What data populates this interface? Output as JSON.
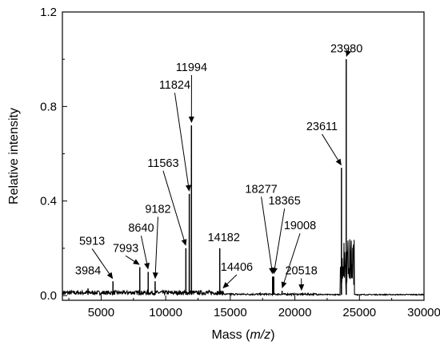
{
  "chart_data": {
    "type": "line",
    "xlabel_main": "Mass (",
    "xlabel_italic": "m/z",
    "xlabel_end": ")",
    "ylabel": "Relative intensity",
    "xlim": [
      2000,
      30000
    ],
    "ylim": [
      -0.02,
      1.2
    ],
    "x_ticks": [
      5000,
      10000,
      15000,
      20000,
      25000,
      30000
    ],
    "x_tick_labels": [
      "5000",
      "10000",
      "15000",
      "20000",
      "25000",
      "30000"
    ],
    "y_ticks": [
      0.0,
      0.4,
      0.8,
      1.2
    ],
    "y_tick_labels": [
      "0.0",
      "0.4",
      "0.8",
      "1.2"
    ],
    "line_color": "#000000",
    "spectrum_peaks": [
      {
        "mass": 3984,
        "intensity": 0.03
      },
      {
        "mass": 5913,
        "intensity": 0.06
      },
      {
        "mass": 7993,
        "intensity": 0.12
      },
      {
        "mass": 8640,
        "intensity": 0.1
      },
      {
        "mass": 9182,
        "intensity": 0.06
      },
      {
        "mass": 11563,
        "intensity": 0.2
      },
      {
        "mass": 11824,
        "intensity": 0.43
      },
      {
        "mass": 11994,
        "intensity": 0.72
      },
      {
        "mass": 14182,
        "intensity": 0.2
      },
      {
        "mass": 14406,
        "intensity": 0.02
      },
      {
        "mass": 18277,
        "intensity": 0.08
      },
      {
        "mass": 18365,
        "intensity": 0.08
      },
      {
        "mass": 19008,
        "intensity": 0.02
      },
      {
        "mass": 20518,
        "intensity": 0.01
      },
      {
        "mass": 23611,
        "intensity": 0.54
      },
      {
        "mass": 23980,
        "intensity": 1.0
      }
    ],
    "annotations": [
      {
        "text": "3984",
        "mass": 3984,
        "intensity": 0.03
      },
      {
        "text": "5913",
        "mass": 5913,
        "intensity": 0.06
      },
      {
        "text": "7993",
        "mass": 7993,
        "intensity": 0.12
      },
      {
        "text": "8640",
        "mass": 8640,
        "intensity": 0.1
      },
      {
        "text": "9182",
        "mass": 9182,
        "intensity": 0.06
      },
      {
        "text": "11563",
        "mass": 11563,
        "intensity": 0.2
      },
      {
        "text": "11824",
        "mass": 11824,
        "intensity": 0.43
      },
      {
        "text": "11994",
        "mass": 11994,
        "intensity": 0.72
      },
      {
        "text": "14182",
        "mass": 14182,
        "intensity": 0.2
      },
      {
        "text": "14406",
        "mass": 14406,
        "intensity": 0.02
      },
      {
        "text": "18277",
        "mass": 18277,
        "intensity": 0.08
      },
      {
        "text": "18365",
        "mass": 18365,
        "intensity": 0.08
      },
      {
        "text": "19008",
        "mass": 19008,
        "intensity": 0.02
      },
      {
        "text": "20518",
        "mass": 20518,
        "intensity": 0.01
      },
      {
        "text": "23611",
        "mass": 23611,
        "intensity": 0.54
      },
      {
        "text": "23980",
        "mass": 23980,
        "intensity": 1.0
      }
    ]
  }
}
